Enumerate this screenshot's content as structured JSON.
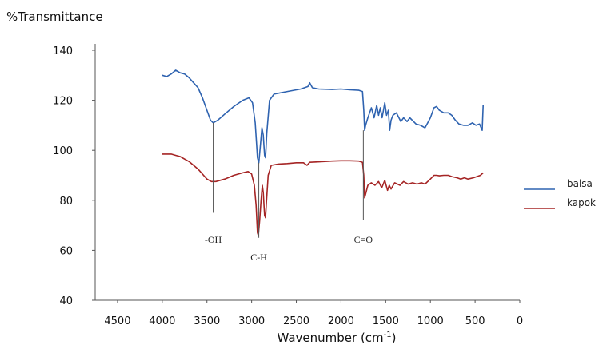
{
  "chart_data": {
    "type": "line",
    "title": "",
    "ylabel": "%Transmittance",
    "xlabel": "Wavenumber (cm",
    "xlabel_sup": "-1",
    "xlabel_suffix": ")",
    "xlim": [
      4750,
      0
    ],
    "ylim": [
      40,
      140
    ],
    "x_ticks": [
      4500,
      4000,
      3500,
      3000,
      2500,
      2000,
      1500,
      1000,
      500,
      0
    ],
    "y_ticks": [
      40,
      60,
      80,
      100,
      120,
      140
    ],
    "grid": false,
    "legend_position": "right",
    "series": [
      {
        "name": "balsa",
        "color": "#2f63b0",
        "points": [
          [
            4000,
            130
          ],
          [
            3950,
            129.5
          ],
          [
            3900,
            130.5
          ],
          [
            3850,
            132
          ],
          [
            3800,
            131
          ],
          [
            3750,
            130.5
          ],
          [
            3700,
            129
          ],
          [
            3650,
            127
          ],
          [
            3600,
            125
          ],
          [
            3550,
            121
          ],
          [
            3500,
            116
          ],
          [
            3460,
            112
          ],
          [
            3430,
            111
          ],
          [
            3380,
            112
          ],
          [
            3300,
            114.5
          ],
          [
            3200,
            117.5
          ],
          [
            3100,
            120
          ],
          [
            3030,
            121
          ],
          [
            2990,
            119
          ],
          [
            2960,
            111
          ],
          [
            2935,
            97
          ],
          [
            2920,
            95
          ],
          [
            2905,
            101
          ],
          [
            2885,
            109
          ],
          [
            2870,
            106
          ],
          [
            2855,
            98
          ],
          [
            2845,
            97
          ],
          [
            2830,
            107
          ],
          [
            2800,
            120
          ],
          [
            2750,
            122.5
          ],
          [
            2600,
            123.5
          ],
          [
            2450,
            124.5
          ],
          [
            2370,
            125.5
          ],
          [
            2350,
            127
          ],
          [
            2320,
            125
          ],
          [
            2250,
            124.5
          ],
          [
            2100,
            124.3
          ],
          [
            2000,
            124.5
          ],
          [
            1900,
            124.2
          ],
          [
            1800,
            124
          ],
          [
            1760,
            123.5
          ],
          [
            1745,
            116
          ],
          [
            1735,
            108
          ],
          [
            1725,
            110
          ],
          [
            1700,
            113
          ],
          [
            1660,
            117
          ],
          [
            1630,
            113
          ],
          [
            1600,
            118
          ],
          [
            1580,
            114
          ],
          [
            1560,
            117
          ],
          [
            1540,
            113
          ],
          [
            1510,
            119
          ],
          [
            1490,
            114
          ],
          [
            1470,
            116
          ],
          [
            1455,
            108
          ],
          [
            1440,
            112
          ],
          [
            1420,
            114
          ],
          [
            1380,
            115
          ],
          [
            1330,
            111.5
          ],
          [
            1300,
            113
          ],
          [
            1260,
            111.5
          ],
          [
            1230,
            113
          ],
          [
            1160,
            110.5
          ],
          [
            1110,
            110
          ],
          [
            1060,
            109
          ],
          [
            1030,
            111
          ],
          [
            1000,
            113
          ],
          [
            960,
            117
          ],
          [
            930,
            117.5
          ],
          [
            900,
            116
          ],
          [
            850,
            115
          ],
          [
            800,
            115
          ],
          [
            760,
            114
          ],
          [
            720,
            112
          ],
          [
            680,
            110.5
          ],
          [
            630,
            110
          ],
          [
            580,
            110
          ],
          [
            530,
            111
          ],
          [
            490,
            110
          ],
          [
            450,
            110.5
          ],
          [
            420,
            108
          ],
          [
            410,
            118
          ]
        ]
      },
      {
        "name": "kapok",
        "color": "#a52525",
        "points": [
          [
            4000,
            98.5
          ],
          [
            3900,
            98.5
          ],
          [
            3850,
            98
          ],
          [
            3800,
            97.5
          ],
          [
            3750,
            96.5
          ],
          [
            3700,
            95.5
          ],
          [
            3650,
            94
          ],
          [
            3600,
            92.5
          ],
          [
            3550,
            90.5
          ],
          [
            3500,
            88.5
          ],
          [
            3450,
            87.5
          ],
          [
            3400,
            87.5
          ],
          [
            3300,
            88.5
          ],
          [
            3200,
            90
          ],
          [
            3100,
            91
          ],
          [
            3040,
            91.5
          ],
          [
            3000,
            90.5
          ],
          [
            2970,
            86
          ],
          [
            2950,
            78
          ],
          [
            2935,
            67
          ],
          [
            2925,
            66
          ],
          [
            2910,
            72
          ],
          [
            2895,
            80
          ],
          [
            2880,
            86
          ],
          [
            2870,
            83
          ],
          [
            2855,
            74
          ],
          [
            2845,
            73
          ],
          [
            2835,
            79
          ],
          [
            2815,
            90
          ],
          [
            2780,
            94
          ],
          [
            2700,
            94.5
          ],
          [
            2600,
            94.7
          ],
          [
            2500,
            95
          ],
          [
            2420,
            95
          ],
          [
            2380,
            94
          ],
          [
            2350,
            95.2
          ],
          [
            2300,
            95.3
          ],
          [
            2200,
            95.5
          ],
          [
            2100,
            95.7
          ],
          [
            2000,
            95.8
          ],
          [
            1900,
            95.8
          ],
          [
            1800,
            95.7
          ],
          [
            1760,
            95.2
          ],
          [
            1745,
            90
          ],
          [
            1735,
            81
          ],
          [
            1725,
            82.5
          ],
          [
            1700,
            86
          ],
          [
            1660,
            87
          ],
          [
            1620,
            86
          ],
          [
            1580,
            87.5
          ],
          [
            1545,
            85
          ],
          [
            1510,
            88
          ],
          [
            1480,
            84
          ],
          [
            1460,
            86
          ],
          [
            1440,
            84.5
          ],
          [
            1400,
            87
          ],
          [
            1340,
            86
          ],
          [
            1300,
            87.5
          ],
          [
            1250,
            86.5
          ],
          [
            1200,
            87
          ],
          [
            1150,
            86.5
          ],
          [
            1100,
            87
          ],
          [
            1060,
            86.5
          ],
          [
            1000,
            88.5
          ],
          [
            960,
            90
          ],
          [
            930,
            90
          ],
          [
            900,
            89.8
          ],
          [
            850,
            90
          ],
          [
            800,
            90
          ],
          [
            760,
            89.5
          ],
          [
            700,
            89
          ],
          [
            660,
            88.5
          ],
          [
            620,
            89
          ],
          [
            580,
            88.5
          ],
          [
            520,
            89
          ],
          [
            480,
            89.5
          ],
          [
            440,
            90
          ],
          [
            410,
            91
          ]
        ]
      }
    ],
    "annotations": [
      {
        "label": "-OH",
        "x": 3430,
        "y_top": 111,
        "y_bottom": 75,
        "text_y": 63
      },
      {
        "label": "C-H",
        "x": 2920,
        "y_top": 95,
        "y_bottom": 65,
        "text_y": 56
      },
      {
        "label": "C=O",
        "x": 1750,
        "y_top": 108,
        "y_bottom": 72,
        "text_y": 63
      }
    ]
  }
}
